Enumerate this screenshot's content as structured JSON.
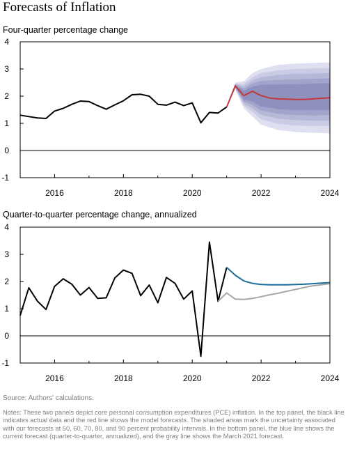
{
  "title": "Forecasts of Inflation",
  "source": "Source: Authors' calculations.",
  "notes": "Notes: These two panels depict core personal consumption expenditures (PCE) inflation. In the top panel, the black line indicates actual data and the red line shows the model forecasts. The shaded areas mark the uncertainty associated with our forecasts at 50, 60, 70, 80, and 90 percent probability intervals. In the bottom panel, the blue line shows the current forecast (quarter-to-quarter, annualized), and the gray line shows the March 2021 forecast.",
  "colors": {
    "actual": "#000000",
    "forecast_top": "#c0393b",
    "forecast_current": "#1a6e9c",
    "forecast_march": "#a6a6a6",
    "band_50": "#8e90bd",
    "band_60": "#a2a4cb",
    "band_70": "#b6b8d8",
    "band_80": "#cacbe4",
    "band_90": "#deDff0"
  },
  "chart_data": [
    {
      "type": "line",
      "title": "Four-quarter percentage change",
      "xlim": [
        2015.0,
        2024.0
      ],
      "ylim": [
        -1,
        4
      ],
      "xticks": [
        2016,
        2018,
        2020,
        2022,
        2024
      ],
      "yticks": [
        -1,
        0,
        1,
        2,
        3,
        4
      ],
      "grid": false,
      "series": [
        {
          "role": "actual",
          "x": [
            2015.0,
            2015.25,
            2015.5,
            2015.75,
            2016.0,
            2016.25,
            2016.5,
            2016.75,
            2017.0,
            2017.25,
            2017.5,
            2017.75,
            2018.0,
            2018.25,
            2018.5,
            2018.75,
            2019.0,
            2019.25,
            2019.5,
            2019.75,
            2020.0,
            2020.25,
            2020.5,
            2020.75,
            2021.0
          ],
          "y": [
            1.3,
            1.25,
            1.2,
            1.18,
            1.45,
            1.55,
            1.7,
            1.82,
            1.8,
            1.65,
            1.52,
            1.68,
            1.83,
            2.05,
            2.07,
            2.0,
            1.7,
            1.67,
            1.78,
            1.65,
            1.75,
            1.02,
            1.4,
            1.38,
            1.6
          ]
        },
        {
          "role": "forecast",
          "x": [
            2021.0,
            2021.25,
            2021.5,
            2021.75,
            2022.0,
            2022.25,
            2022.5,
            2022.75,
            2023.0,
            2023.25,
            2023.5,
            2023.75,
            2024.0
          ],
          "y": [
            1.6,
            2.38,
            2.02,
            2.18,
            2.02,
            1.93,
            1.9,
            1.89,
            1.88,
            1.88,
            1.9,
            1.92,
            1.94
          ]
        }
      ],
      "bands": [
        {
          "level": 90,
          "x": [
            2021.0,
            2021.25,
            2021.5,
            2021.75,
            2022.0,
            2022.5,
            2023.0,
            2023.5,
            2024.0
          ],
          "lower": [
            1.6,
            2.25,
            1.55,
            1.25,
            0.95,
            0.75,
            0.68,
            0.65,
            0.63
          ],
          "upper": [
            1.6,
            2.5,
            2.55,
            2.85,
            3.0,
            3.15,
            3.2,
            3.22,
            3.24
          ]
        },
        {
          "level": 80,
          "x": [
            2021.0,
            2021.25,
            2021.5,
            2021.75,
            2022.0,
            2022.5,
            2023.0,
            2023.5,
            2024.0
          ],
          "lower": [
            1.6,
            2.28,
            1.65,
            1.42,
            1.15,
            0.98,
            0.92,
            0.9,
            0.9
          ],
          "upper": [
            1.6,
            2.47,
            2.45,
            2.7,
            2.85,
            2.95,
            3.0,
            3.02,
            3.04
          ]
        },
        {
          "level": 70,
          "x": [
            2021.0,
            2021.25,
            2021.5,
            2021.75,
            2022.0,
            2022.5,
            2023.0,
            2023.5,
            2024.0
          ],
          "lower": [
            1.6,
            2.3,
            1.72,
            1.55,
            1.32,
            1.17,
            1.12,
            1.1,
            1.1
          ],
          "upper": [
            1.6,
            2.45,
            2.36,
            2.58,
            2.7,
            2.78,
            2.82,
            2.83,
            2.85
          ]
        },
        {
          "level": 60,
          "x": [
            2021.0,
            2021.25,
            2021.5,
            2021.75,
            2022.0,
            2022.5,
            2023.0,
            2023.5,
            2024.0
          ],
          "lower": [
            1.6,
            2.32,
            1.8,
            1.68,
            1.47,
            1.35,
            1.3,
            1.29,
            1.3
          ],
          "upper": [
            1.6,
            2.43,
            2.28,
            2.46,
            2.56,
            2.6,
            2.62,
            2.64,
            2.66
          ]
        },
        {
          "level": 50,
          "x": [
            2021.0,
            2021.25,
            2021.5,
            2021.75,
            2022.0,
            2022.5,
            2023.0,
            2023.5,
            2024.0
          ],
          "lower": [
            1.6,
            2.34,
            1.87,
            1.8,
            1.62,
            1.52,
            1.48,
            1.48,
            1.5
          ],
          "upper": [
            1.6,
            2.41,
            2.2,
            2.34,
            2.42,
            2.43,
            2.44,
            2.46,
            2.48
          ]
        }
      ]
    },
    {
      "type": "line",
      "title": "Quarter-to-quarter percentage change, annualized",
      "xlim": [
        2015.0,
        2024.0
      ],
      "ylim": [
        -1,
        4
      ],
      "xticks": [
        2016,
        2018,
        2020,
        2022,
        2024
      ],
      "yticks": [
        -1,
        0,
        1,
        2,
        3,
        4
      ],
      "grid": false,
      "series": [
        {
          "role": "actual",
          "x": [
            2015.0,
            2015.25,
            2015.5,
            2015.75,
            2016.0,
            2016.25,
            2016.5,
            2016.75,
            2017.0,
            2017.25,
            2017.5,
            2017.75,
            2018.0,
            2018.25,
            2018.5,
            2018.75,
            2019.0,
            2019.25,
            2019.5,
            2019.75,
            2020.0,
            2020.25,
            2020.5,
            2020.75,
            2021.0
          ],
          "y": [
            0.75,
            1.77,
            1.28,
            0.97,
            1.82,
            2.1,
            1.9,
            1.5,
            1.78,
            1.38,
            1.4,
            2.13,
            2.42,
            2.3,
            1.48,
            1.87,
            1.22,
            2.15,
            1.93,
            1.35,
            1.65,
            -0.75,
            3.45,
            1.27,
            2.52
          ]
        },
        {
          "role": "current-forecast",
          "x": [
            2021.0,
            2021.25,
            2021.5,
            2021.75,
            2022.0,
            2022.25,
            2022.5,
            2022.75,
            2023.0,
            2023.25,
            2023.5,
            2023.75,
            2024.0
          ],
          "y": [
            2.52,
            2.23,
            2.02,
            1.93,
            1.89,
            1.88,
            1.88,
            1.88,
            1.89,
            1.9,
            1.92,
            1.94,
            1.96
          ]
        },
        {
          "role": "march-2021-forecast",
          "x": [
            2020.75,
            2021.0,
            2021.25,
            2021.5,
            2021.75,
            2022.0,
            2022.25,
            2022.5,
            2022.75,
            2023.0,
            2023.25,
            2023.5,
            2023.75,
            2024.0
          ],
          "y": [
            1.27,
            1.58,
            1.35,
            1.34,
            1.38,
            1.44,
            1.51,
            1.57,
            1.64,
            1.71,
            1.78,
            1.84,
            1.88,
            1.92
          ]
        }
      ]
    }
  ]
}
